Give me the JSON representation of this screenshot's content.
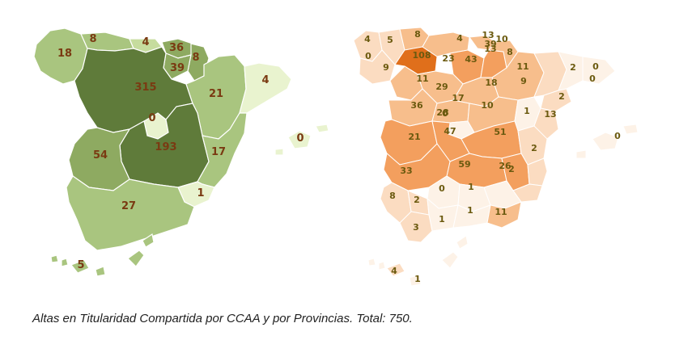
{
  "caption": "Altas en Titularidad Compartida por CCAA y por Provincias. Total: 750.",
  "colors": {
    "ccaa_scale": [
      "#e9f3cf",
      "#c6dc9e",
      "#a9c57f",
      "#8eaa61",
      "#5f7b3a"
    ],
    "provincias_scale": [
      "#fdf2e7",
      "#fbdcc1",
      "#f7be8c",
      "#f39f5e",
      "#e06f1b"
    ],
    "ccaa_label": "#7a3a12",
    "provincias_label": "#6b5a0f",
    "border": "#ffffff"
  },
  "ccaa_map": {
    "regions": [
      {
        "name": "Galicia",
        "value": "18"
      },
      {
        "name": "Asturias",
        "value": "8"
      },
      {
        "name": "Cantabria",
        "value": "4"
      },
      {
        "name": "País Vasco",
        "value": "36"
      },
      {
        "name": "Navarra",
        "value": "8"
      },
      {
        "name": "La Rioja",
        "value": "39"
      },
      {
        "name": "Castilla y León",
        "value": "315"
      },
      {
        "name": "Aragón",
        "value": "21"
      },
      {
        "name": "Cataluña",
        "value": "4"
      },
      {
        "name": "Madrid",
        "value": "0"
      },
      {
        "name": "Castilla-La Mancha",
        "value": "193"
      },
      {
        "name": "Extremadura",
        "value": "54"
      },
      {
        "name": "Comunidad Valenciana",
        "value": "17"
      },
      {
        "name": "Murcia",
        "value": "1"
      },
      {
        "name": "Andalucía",
        "value": "27"
      },
      {
        "name": "Baleares",
        "value": "0"
      },
      {
        "name": "Canarias",
        "value": "5"
      }
    ]
  },
  "provincias_map": {
    "values": [
      "4",
      "5",
      "8",
      "4",
      "13",
      "10",
      "0",
      "108",
      "23",
      "43",
      "39",
      "13",
      "8",
      "9",
      "11",
      "11",
      "2",
      "0",
      "0",
      "29",
      "18",
      "9",
      "17",
      "36",
      "2",
      "28",
      "0",
      "10",
      "1",
      "13",
      "21",
      "47",
      "51",
      "2",
      "59",
      "26",
      "33",
      "0",
      "1",
      "2",
      "8",
      "2",
      "1",
      "1",
      "11",
      "3",
      "4",
      "1",
      "0"
    ]
  }
}
